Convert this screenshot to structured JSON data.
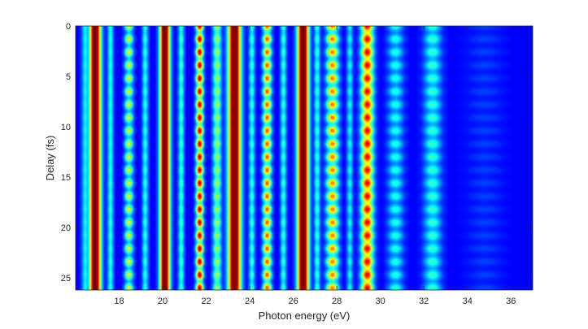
{
  "chart_data": {
    "type": "heatmap",
    "title": "",
    "xlabel": "Photon energy (eV)",
    "ylabel": "Delay (fs)",
    "xlim": [
      16.0,
      37.0
    ],
    "ylim": [
      0,
      26.2
    ],
    "y_reversed": true,
    "x_ticks": [
      18,
      20,
      22,
      24,
      26,
      28,
      30,
      32,
      34,
      36
    ],
    "y_ticks": [
      0,
      5,
      10,
      15,
      20,
      25
    ],
    "x_tick_labels": [
      "18",
      "20",
      "22",
      "24",
      "26",
      "28",
      "30",
      "32",
      "34",
      "36"
    ],
    "y_tick_labels": [
      "0",
      "5",
      "10",
      "15",
      "20",
      "25"
    ],
    "colormap": "jet",
    "value_range": [
      0,
      1
    ],
    "grid": false,
    "background_level": 0.12,
    "oscillation_period_fs": 1.3,
    "bands": [
      {
        "center": 16.45,
        "width": 0.12,
        "peak": 0.35,
        "modulation": 0.05
      },
      {
        "center": 16.9,
        "width": 0.18,
        "peak": 1.0,
        "modulation": 0.0
      },
      {
        "center": 17.6,
        "width": 0.1,
        "peak": 0.38,
        "modulation": 0.1
      },
      {
        "center": 18.45,
        "width": 0.14,
        "peak": 0.55,
        "modulation": 0.45
      },
      {
        "center": 19.2,
        "width": 0.1,
        "peak": 0.38,
        "modulation": 0.15
      },
      {
        "center": 20.1,
        "width": 0.16,
        "peak": 1.0,
        "modulation": 0.0
      },
      {
        "center": 20.85,
        "width": 0.1,
        "peak": 0.4,
        "modulation": 0.15
      },
      {
        "center": 21.7,
        "width": 0.12,
        "peak": 0.85,
        "modulation": 0.45
      },
      {
        "center": 22.5,
        "width": 0.14,
        "peak": 0.5,
        "modulation": 0.25
      },
      {
        "center": 23.3,
        "width": 0.2,
        "peak": 1.0,
        "modulation": 0.0
      },
      {
        "center": 24.1,
        "width": 0.1,
        "peak": 0.4,
        "modulation": 0.2
      },
      {
        "center": 24.8,
        "width": 0.14,
        "peak": 0.72,
        "modulation": 0.45
      },
      {
        "center": 25.55,
        "width": 0.1,
        "peak": 0.4,
        "modulation": 0.2
      },
      {
        "center": 26.45,
        "width": 0.18,
        "peak": 1.0,
        "modulation": 0.0
      },
      {
        "center": 27.1,
        "width": 0.1,
        "peak": 0.4,
        "modulation": 0.2
      },
      {
        "center": 27.8,
        "width": 0.2,
        "peak": 0.68,
        "modulation": 0.45
      },
      {
        "center": 28.6,
        "width": 0.1,
        "peak": 0.36,
        "modulation": 0.2
      },
      {
        "center": 29.4,
        "width": 0.2,
        "peak": 0.8,
        "modulation": 0.3
      },
      {
        "center": 30.7,
        "width": 0.25,
        "peak": 0.38,
        "modulation": 0.35
      },
      {
        "center": 32.4,
        "width": 0.28,
        "peak": 0.4,
        "modulation": 0.3
      },
      {
        "center": 34.8,
        "width": 0.6,
        "peak": 0.18,
        "modulation": 0.2
      }
    ]
  }
}
